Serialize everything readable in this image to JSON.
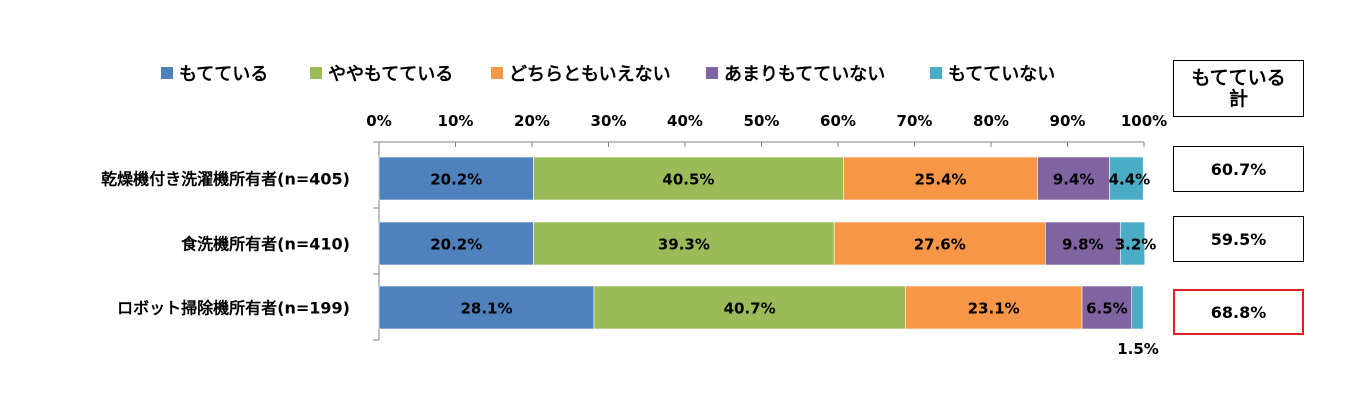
{
  "chart_data": {
    "type": "bar",
    "orientation": "horizontal",
    "stacked": true,
    "percent": true,
    "legend_position": "top",
    "categories": [
      "乾燥機付き洗濯機所有者(n=405)",
      "食洗機所有者(n=410)",
      "ロボット掃除機所有者(n=199)"
    ],
    "xlim": [
      0,
      100
    ],
    "xticks": [
      "0%",
      "10%",
      "20%",
      "30%",
      "40%",
      "50%",
      "60%",
      "70%",
      "80%",
      "90%",
      "100%"
    ],
    "series": [
      {
        "name": "もてている",
        "color": "#4F81BD",
        "values": [
          20.2,
          20.2,
          28.1
        ],
        "labels": [
          "20.2%",
          "20.2%",
          "28.1%"
        ]
      },
      {
        "name": "ややもてている",
        "color": "#9BBB59",
        "values": [
          40.5,
          39.3,
          40.7
        ],
        "labels": [
          "40.5%",
          "39.3%",
          "40.7%"
        ]
      },
      {
        "name": "どちらともいえない",
        "color": "#F79646",
        "values": [
          25.4,
          27.6,
          23.1
        ],
        "labels": [
          "25.4%",
          "27.6%",
          "23.1%"
        ]
      },
      {
        "name": "あまりもてていない",
        "color": "#8064A2",
        "values": [
          9.4,
          9.8,
          6.5
        ],
        "labels": [
          "9.4%",
          "9.8%",
          "6.5%"
        ]
      },
      {
        "name": "もてていない",
        "color": "#4BACC6",
        "values": [
          4.4,
          3.2,
          1.5
        ],
        "labels": [
          "4.4%",
          "3.2%",
          "1.5%"
        ]
      }
    ]
  },
  "summary": {
    "header_line1": "もてている",
    "header_line2": "計",
    "values": [
      "60.7%",
      "59.5%",
      "68.8%"
    ],
    "highlight_color": "#E02020"
  }
}
